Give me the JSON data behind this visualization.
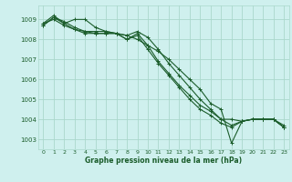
{
  "background_color": "#cff0ee",
  "grid_color": "#aad8cc",
  "line_color": "#1a5c2a",
  "xlabel": "Graphe pression niveau de la mer (hPa)",
  "ylim": [
    1002.5,
    1009.7
  ],
  "xlim": [
    -0.5,
    23.5
  ],
  "yticks": [
    1003,
    1004,
    1005,
    1006,
    1007,
    1008,
    1009
  ],
  "xticks": [
    0,
    1,
    2,
    3,
    4,
    5,
    6,
    7,
    8,
    9,
    10,
    11,
    12,
    13,
    14,
    15,
    16,
    17,
    18,
    19,
    20,
    21,
    22,
    23
  ],
  "series": [
    [
      1008.8,
      1009.2,
      1008.8,
      1009.0,
      1009.0,
      1008.6,
      1008.4,
      1008.3,
      1008.2,
      1008.0,
      1007.7,
      1007.4,
      1007.0,
      1006.5,
      1006.0,
      1005.5,
      1004.8,
      1004.5,
      1002.8,
      1003.9,
      1004.0,
      1004.0,
      1004.0,
      1003.6
    ],
    [
      1008.8,
      1009.0,
      1008.7,
      1008.5,
      1008.4,
      1008.3,
      1008.3,
      1008.3,
      1008.2,
      1008.4,
      1008.1,
      1007.5,
      1006.8,
      1006.2,
      1005.6,
      1005.0,
      1004.5,
      1004.0,
      1003.7,
      1003.9,
      1004.0,
      1004.0,
      1004.0,
      1003.7
    ],
    [
      1008.7,
      1009.1,
      1008.9,
      1008.6,
      1008.4,
      1008.4,
      1008.4,
      1008.3,
      1008.0,
      1008.3,
      1007.7,
      1006.9,
      1006.3,
      1005.7,
      1005.2,
      1004.7,
      1004.4,
      1004.0,
      1004.0,
      1003.9,
      1004.0,
      1004.0,
      1004.0,
      1003.6
    ],
    [
      1008.7,
      1009.1,
      1008.8,
      1008.5,
      1008.3,
      1008.3,
      1008.3,
      1008.3,
      1008.0,
      1008.2,
      1007.5,
      1006.8,
      1006.2,
      1005.6,
      1005.0,
      1004.5,
      1004.2,
      1003.8,
      1003.6,
      1003.9,
      1004.0,
      1004.0,
      1004.0,
      1003.6
    ]
  ]
}
